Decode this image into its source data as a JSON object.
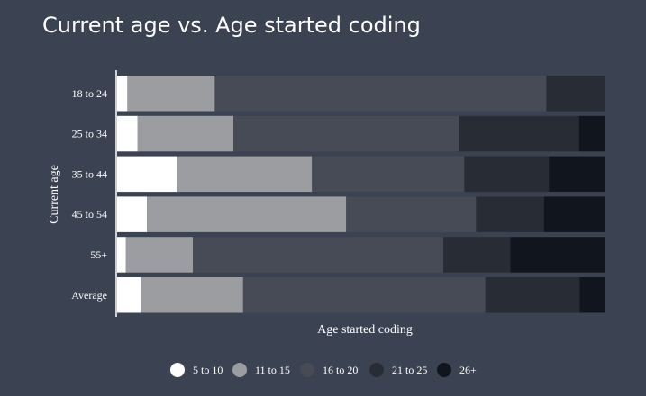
{
  "chart_data": {
    "type": "bar",
    "orientation": "horizontal",
    "stacked": true,
    "normalized": true,
    "title": "Current age vs. Age started coding",
    "xlabel": "Age started coding",
    "ylabel": "Current age",
    "categories": [
      "18 to 24",
      "25 to 34",
      "35 to 44",
      "45 to 54",
      "55+",
      "Average"
    ],
    "series": [
      {
        "name": "5 to 10",
        "color": "#ffffff",
        "values": [
          2.1,
          4.2,
          12.2,
          6.1,
          1.8,
          4.8
        ]
      },
      {
        "name": "11 to 15",
        "color": "#9b9da1",
        "values": [
          17.9,
          19.6,
          27.7,
          40.8,
          13.7,
          21.0
        ]
      },
      {
        "name": "16 to 20",
        "color": "#474b55",
        "values": [
          67.9,
          46.2,
          31.2,
          26.6,
          51.3,
          49.6
        ]
      },
      {
        "name": "21 to 25",
        "color": "#282c35",
        "values": [
          12.1,
          24.6,
          17.3,
          13.9,
          13.7,
          19.3
        ]
      },
      {
        "name": "26+",
        "color": "#11151e",
        "values": [
          0.0,
          5.4,
          11.6,
          12.6,
          19.5,
          5.3
        ]
      }
    ],
    "xlim": [
      0,
      100
    ],
    "grid": false,
    "legend_position": "bottom"
  }
}
